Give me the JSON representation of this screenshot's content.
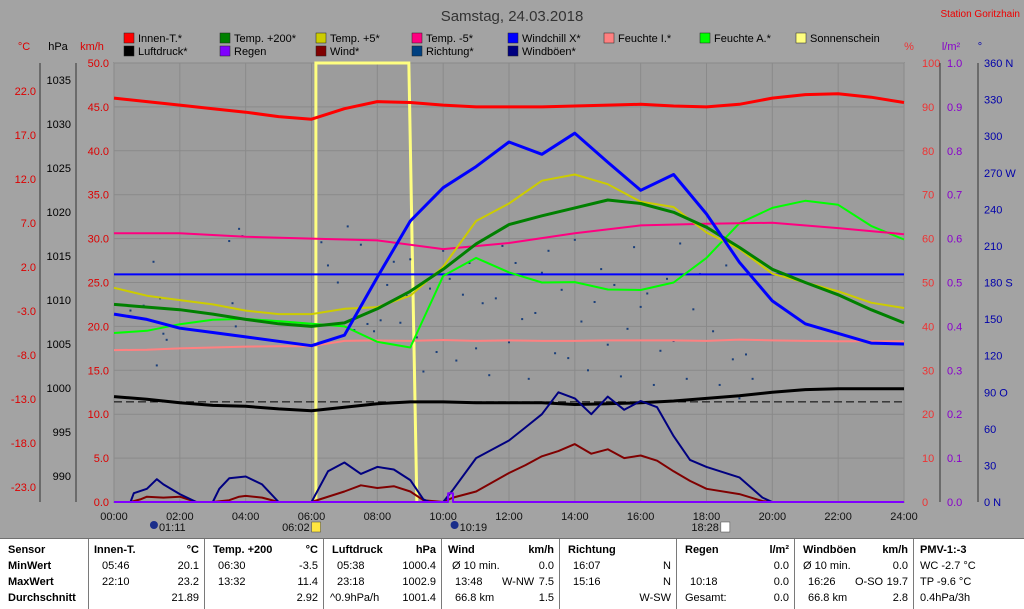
{
  "chart_data": {
    "type": "line",
    "title": "Samstag, 24.03.2018",
    "station": "Station Goritzhain",
    "x_range": [
      "00:00",
      "24:00"
    ],
    "x_ticks": [
      "00:00",
      "02:00",
      "04:00",
      "06:00",
      "08:00",
      "10:00",
      "12:00",
      "14:00",
      "16:00",
      "18:00",
      "20:00",
      "22:00",
      "24:00"
    ],
    "axis_units": {
      "temp": "°C",
      "pressure": "hPa",
      "wind": "km/h",
      "percent": "%",
      "rain": "l/m²",
      "direction": "°"
    },
    "axes": {
      "temp": {
        "ticks": [
          "22.0",
          "17.0",
          "12.0",
          "7.0",
          "2.0",
          "-3.0",
          "-8.0",
          "-13.0",
          "-18.0",
          "-23.0"
        ],
        "min": -23,
        "max": 27,
        "color": "#dd0000"
      },
      "pressure": {
        "ticks": [
          "1035",
          "1030",
          "1025",
          "1020",
          "1015",
          "1010",
          "1005",
          "1000",
          "995",
          "990"
        ],
        "min": 990,
        "max": 1040,
        "color": "#000000"
      },
      "wind": {
        "ticks": [
          "50.0",
          "45.0",
          "40.0",
          "35.0",
          "30.0",
          "25.0",
          "20.0",
          "15.0",
          "10.0",
          "5.0",
          "0.0"
        ],
        "min": 0,
        "max": 50,
        "color": "#dd0000"
      },
      "percent": {
        "ticks": [
          "100",
          "90",
          "80",
          "70",
          "60",
          "50",
          "40",
          "30",
          "20",
          "10",
          "0"
        ],
        "min": 0,
        "max": 100,
        "color": "#ee3333"
      },
      "rain": {
        "ticks": [
          "1.0",
          "0.9",
          "0.8",
          "0.7",
          "0.6",
          "0.5",
          "0.4",
          "0.3",
          "0.2",
          "0.1",
          "0.0"
        ],
        "min": 0,
        "max": 1,
        "color": "#8800cc"
      },
      "direction": {
        "ticks": [
          "360 N",
          "330",
          "300",
          "270 W",
          "240",
          "210",
          "180 S",
          "150",
          "120",
          "90 O",
          "60",
          "30",
          "0 N"
        ],
        "min": 0,
        "max": 360,
        "color": "#0000aa"
      }
    },
    "legend": [
      {
        "label": "Innen-T.*",
        "color": "#ff0000"
      },
      {
        "label": "Temp. +200*",
        "color": "#008000"
      },
      {
        "label": "Temp. +5*",
        "color": "#cccc00"
      },
      {
        "label": "Temp. -5*",
        "color": "#ff0080"
      },
      {
        "label": "Windchill X*",
        "color": "#0000ff"
      },
      {
        "label": "Feuchte I.*",
        "color": "#ff8080"
      },
      {
        "label": "Feuchte A.*",
        "color": "#00ff00"
      },
      {
        "label": "Sonnenschein",
        "color": "#ffff80"
      },
      {
        "label": "Luftdruck*",
        "color": "#000000"
      },
      {
        "label": "Regen",
        "color": "#8000ff"
      },
      {
        "label": "Wind*",
        "color": "#800000"
      },
      {
        "label": "Richtung*",
        "color": "#004080"
      },
      {
        "label": "Windböen*",
        "color": "#000080"
      }
    ],
    "events": [
      {
        "time": "01:11",
        "icon": "moon-icon"
      },
      {
        "time": "06:02",
        "icon": "sunrise-icon"
      },
      {
        "time": "10:19",
        "icon": "moon-icon"
      },
      {
        "time": "18:28",
        "icon": "sunset-icon"
      }
    ],
    "series": [
      {
        "name": "Innen-T.*",
        "axis": "temp",
        "color": "#ff0000",
        "width": 3,
        "x": [
          0,
          1,
          2,
          3,
          4,
          5,
          6,
          7,
          8,
          9,
          10,
          11,
          12,
          13,
          14,
          15,
          16,
          17,
          18,
          19,
          20,
          21,
          22,
          23,
          24
        ],
        "y": [
          23.0,
          22.6,
          22.2,
          21.8,
          21.4,
          20.9,
          20.6,
          21.8,
          22.6,
          22.5,
          22.2,
          22.0,
          22.0,
          22.0,
          22.1,
          22.2,
          22.3,
          22.1,
          22.0,
          22.3,
          23.0,
          23.4,
          23.5,
          23.1,
          22.5
        ]
      },
      {
        "name": "Luftdruck*",
        "axis": "pressure",
        "color": "#000000",
        "width": 3,
        "x": [
          0,
          1,
          2,
          3,
          4,
          5,
          6,
          7,
          8,
          9,
          10,
          11,
          12,
          13,
          14,
          15,
          16,
          17,
          18,
          19,
          20,
          21,
          22,
          23,
          24
        ],
        "y": [
          1002.0,
          1001.7,
          1001.3,
          1001.0,
          1000.9,
          1000.6,
          1000.4,
          1000.8,
          1001.2,
          1001.4,
          1001.4,
          1001.3,
          1001.3,
          1001.3,
          1001.1,
          1001.2,
          1001.3,
          1001.5,
          1001.8,
          1002.1,
          1002.5,
          1002.8,
          1002.9,
          1002.9,
          1002.9
        ]
      },
      {
        "name": "Feuchte I.*",
        "axis": "percent",
        "color": "#ff8080",
        "width": 2,
        "x": [
          0,
          1,
          2,
          3,
          4,
          5,
          6,
          7,
          8,
          9,
          10,
          11,
          12,
          13,
          14,
          15,
          16,
          17,
          18,
          19,
          20,
          21,
          22,
          23,
          24
        ],
        "y": [
          34.6,
          34.7,
          35.0,
          35.2,
          35.4,
          35.5,
          35.5,
          36.7,
          36.8,
          36.7,
          36.9,
          36.7,
          36.8,
          36.7,
          36.7,
          36.8,
          36.8,
          36.8,
          36.7,
          37.0,
          36.8,
          36.7,
          36.6,
          36.6,
          36.6
        ]
      },
      {
        "name": "Feuchte A.*",
        "axis": "percent",
        "color": "#00ff00",
        "width": 2,
        "x": [
          0,
          1,
          2,
          3,
          4,
          5,
          6,
          7,
          8,
          9,
          10,
          11,
          12,
          13,
          14,
          15,
          16,
          17,
          18,
          19,
          20,
          21,
          22,
          23,
          24
        ],
        "y": [
          38.5,
          39.0,
          40.5,
          41.5,
          41.7,
          41.2,
          40.6,
          40.0,
          36.5,
          35.2,
          51.5,
          55.6,
          52.3,
          50.0,
          50.1,
          48.4,
          48.3,
          50.0,
          55.6,
          63.5,
          67.0,
          68.6,
          67.7,
          62.9,
          59.8
        ]
      },
      {
        "name": "Temp. -5*",
        "axis": "temp",
        "color": "#ff0080",
        "width": 2,
        "x": [
          0,
          2,
          4,
          6,
          8,
          10,
          12,
          14,
          16,
          18,
          20,
          22,
          24
        ],
        "y": [
          7.6,
          7.6,
          7.2,
          7.0,
          6.8,
          5.8,
          6.5,
          7.6,
          8.5,
          8.7,
          8.8,
          8.2,
          7.5
        ]
      },
      {
        "name": "Temp. +5*",
        "axis": "temp",
        "color": "#cccc00",
        "width": 2,
        "x": [
          0,
          1,
          2,
          3,
          4,
          5,
          6,
          7,
          8,
          9,
          10,
          11,
          12,
          13,
          14,
          15,
          16,
          17,
          18,
          19,
          20,
          21,
          22,
          23,
          24
        ],
        "y": [
          1.4,
          0.5,
          0.0,
          -0.5,
          -1.2,
          -1.6,
          -1.6,
          -1.0,
          -0.8,
          0.5,
          3.8,
          9.0,
          11.0,
          13.6,
          14.3,
          13.2,
          11.2,
          10.6,
          7.7,
          5.8,
          3.0,
          2.0,
          1.0,
          -0.3,
          -0.9
        ]
      },
      {
        "name": "Temp. +200*",
        "axis": "temp",
        "color": "#008000",
        "width": 3,
        "x": [
          0,
          1,
          2,
          3,
          4,
          5,
          6,
          7,
          8,
          9,
          10,
          11,
          12,
          13,
          14,
          15,
          16,
          17,
          18,
          19,
          20,
          21,
          22,
          23,
          24
        ],
        "y": [
          -0.5,
          -0.8,
          -1.1,
          -1.6,
          -2.2,
          -2.7,
          -3.0,
          -2.6,
          -1.0,
          1.0,
          3.5,
          6.4,
          8.6,
          9.6,
          10.5,
          11.4,
          11.0,
          10.0,
          8.3,
          6.0,
          3.5,
          2.0,
          0.6,
          -1.1,
          -2.6
        ]
      },
      {
        "name": "Windchill X*",
        "axis": "temp",
        "color": "#0000ff",
        "width": 3,
        "x": [
          0,
          1,
          2,
          3,
          4,
          5,
          6,
          7,
          8,
          9,
          10,
          11,
          12,
          13,
          14,
          15,
          16,
          17,
          18,
          19,
          20,
          21,
          22,
          23,
          24
        ],
        "y": [
          -1.6,
          -2.2,
          -3.2,
          -3.7,
          -4.2,
          -4.7,
          -5.2,
          -4.0,
          2.6,
          9.0,
          12.8,
          15.2,
          18.0,
          16.6,
          19.0,
          15.7,
          12.5,
          14.3,
          9.8,
          4.3,
          -0.1,
          -2.7,
          -3.8,
          -4.9,
          -5.0
        ]
      },
      {
        "name": "Wind*",
        "axis": "wind",
        "color": "#800000",
        "width": 2,
        "x": [
          0,
          0.5,
          0.8,
          1,
          1.5,
          2,
          2.5,
          3,
          3.5,
          3.8,
          4,
          4.5,
          5,
          5.5,
          6,
          7,
          7.5,
          8,
          8.5,
          9,
          9.4,
          10,
          10.3,
          11,
          12,
          12.5,
          13,
          13.5,
          14,
          14.5,
          15,
          15.5,
          16,
          16.5,
          17,
          17.5,
          18,
          19,
          19.7,
          20,
          24
        ],
        "y": [
          0,
          0,
          0.3,
          0.6,
          0.5,
          0.6,
          0,
          0,
          0.2,
          0.6,
          0.7,
          0.5,
          0,
          0,
          0,
          1.2,
          1.9,
          1.6,
          1.8,
          1.2,
          0.2,
          0,
          0.5,
          1.2,
          3.3,
          4.2,
          5.2,
          5.8,
          6.6,
          5.5,
          6.0,
          5.0,
          5.3,
          4.7,
          3.5,
          2.4,
          1.5,
          0.9,
          0.1,
          0,
          0
        ]
      },
      {
        "name": "Windböen*",
        "axis": "wind",
        "color": "#000080",
        "width": 2,
        "x": [
          0,
          0.5,
          0.6,
          1,
          1.3,
          1.5,
          2,
          2.5,
          3,
          3.2,
          3.5,
          4,
          4.5,
          5,
          5.5,
          6,
          6.5,
          7,
          7.5,
          8,
          8.5,
          9,
          9.4,
          9.6,
          10,
          10.3,
          11,
          12,
          12.5,
          13,
          13.5,
          14,
          14.5,
          15,
          15.5,
          16,
          16.5,
          17,
          17.5,
          18,
          19,
          19.7,
          20,
          24
        ],
        "y": [
          0,
          0,
          1.0,
          1.5,
          2.6,
          2.0,
          0.9,
          0,
          0,
          1.5,
          2.7,
          2.9,
          2.0,
          0,
          0,
          0,
          3.5,
          4.5,
          3.2,
          4.0,
          3.7,
          2.5,
          0.3,
          0,
          0,
          1.4,
          5.0,
          7.0,
          8.5,
          10.0,
          12.5,
          11.8,
          10.0,
          12.0,
          10.5,
          11.5,
          10.8,
          7.5,
          4.8,
          4.0,
          2.8,
          0.5,
          0,
          0
        ]
      },
      {
        "name": "Regen",
        "axis": "rain",
        "color": "#8000ff",
        "width": 2,
        "x": [
          0,
          10.15,
          10.15,
          10.3,
          10.3,
          24
        ],
        "y": [
          0,
          0,
          0.02,
          0.02,
          0,
          0
        ]
      }
    ],
    "sunshine": {
      "start": "06:08",
      "end": "09:12",
      "color": "#ffff80"
    },
    "averages": [
      {
        "name": "Temp. +200 Durchschnitt",
        "axis": "temp",
        "value": 2.92,
        "color": "#0000ff"
      },
      {
        "name": "Luftdruck Durchschnitt",
        "axis": "pressure",
        "value": 1001.4,
        "color": "#000000",
        "dashed": true
      }
    ],
    "direction_points": {
      "x": [
        0.5,
        0.9,
        1.2,
        1.3,
        1.4,
        1.5,
        1.6,
        3.5,
        3.6,
        3.7,
        3.8,
        3.9,
        6.3,
        6.5,
        6.8,
        7.1,
        7.3,
        7.5,
        7.7,
        7.9,
        8.1,
        8.3,
        8.5,
        8.7,
        8.9,
        9.0,
        9.2,
        9.4,
        9.6,
        9.8,
        10.0,
        10.2,
        10.4,
        10.6,
        10.8,
        11.0,
        11.2,
        11.4,
        11.6,
        11.8,
        12.0,
        12.2,
        12.4,
        12.6,
        12.8,
        13.0,
        13.2,
        13.4,
        13.6,
        13.8,
        14.0,
        14.2,
        14.4,
        14.6,
        14.8,
        15.0,
        15.2,
        15.4,
        15.6,
        15.8,
        16.0,
        16.2,
        16.4,
        16.6,
        16.8,
        17.0,
        17.2,
        17.4,
        17.6,
        17.8,
        18.0,
        18.2,
        18.4,
        18.6,
        18.8,
        19.0,
        19.2,
        19.4
      ],
      "y": [
        157,
        161,
        197,
        112,
        167,
        138,
        133,
        214,
        163,
        144,
        224,
        218,
        213,
        194,
        180,
        226,
        141,
        211,
        146,
        140,
        149,
        178,
        197,
        147,
        169,
        199,
        135,
        107,
        175,
        123,
        206,
        183,
        116,
        170,
        196,
        126,
        163,
        104,
        167,
        210,
        131,
        196,
        150,
        101,
        155,
        188,
        206,
        122,
        174,
        118,
        215,
        148,
        108,
        164,
        191,
        129,
        178,
        103,
        142,
        209,
        160,
        171,
        96,
        124,
        183,
        132,
        212,
        101,
        158,
        187,
        226,
        140,
        96,
        194,
        117,
        85,
        121,
        101
      ]
    }
  },
  "stats": {
    "header": {
      "sensor": "Sensor",
      "innen": "Innen-T.",
      "innen_u": "°C",
      "temp200": "Temp. +200",
      "temp200_u": "°C",
      "luftdruck": "Luftdruck",
      "luftdruck_u": "hPa",
      "wind": "Wind",
      "wind_u": "km/h",
      "richtung": "Richtung",
      "regen": "Regen",
      "regen_u": "l/m²",
      "windboeen": "Windböen",
      "windboeen_u": "km/h",
      "pmv": "PMV-1:-3"
    },
    "labels": {
      "min": "MinWert",
      "max": "MaxWert",
      "avg": "Durchschnitt"
    },
    "innen": {
      "min_time": "05:46",
      "min": "20.1",
      "max_time": "22:10",
      "max": "23.2",
      "avg": "21.89"
    },
    "temp200": {
      "min_time": "06:30",
      "min": "-3.5",
      "max_time": "13:32",
      "max": "11.4",
      "avg": "2.92"
    },
    "luftdruck": {
      "min_time": "05:38",
      "min": "1000.4",
      "max_time": "23:18",
      "max": "1002.9",
      "avg_label": "^0.9hPa/h",
      "avg": "1001.4"
    },
    "wind": {
      "r1_label": "Ø 10 min.",
      "r1": "0.0",
      "r2_time": "13:48",
      "r2_dir": "W-NW",
      "r2": "7.5",
      "r3_label": "66.8 km",
      "r3": "1.5"
    },
    "richtung": {
      "r1_time": "16:07",
      "r1": "N",
      "r2_time": "15:16",
      "r2": "N",
      "r3": "W-SW"
    },
    "regen": {
      "r2_time": "10:18",
      "r1": "0.0",
      "r2": "0.0",
      "r3_label": "Gesamt:",
      "r3": "0.0"
    },
    "windboeen": {
      "r1_label": "Ø 10 min.",
      "r1": "0.0",
      "r2_time": "16:26",
      "r2_dir": "O-SO",
      "r2": "19.7",
      "r3_label": "66.8 km",
      "r3": "2.8"
    },
    "pmv": {
      "r1": "WC -2.7 °C",
      "r2": "TP -9.6 °C",
      "r3": "0.4hPa/3h"
    }
  }
}
